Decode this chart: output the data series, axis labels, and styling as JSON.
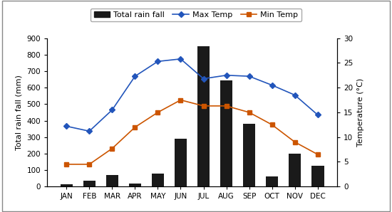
{
  "months": [
    "JAN",
    "FEB",
    "MAR",
    "APR",
    "MAY",
    "JUN",
    "JUL",
    "AUG",
    "SEP",
    "OCT",
    "NOV",
    "DEC"
  ],
  "rainfall": [
    15,
    35,
    70,
    20,
    80,
    290,
    850,
    645,
    380,
    60,
    200,
    125
  ],
  "max_temp": [
    12.2,
    11.2,
    15.5,
    22.3,
    25.3,
    25.8,
    21.8,
    22.5,
    22.3,
    20.5,
    18.5,
    14.5
  ],
  "min_temp": [
    4.5,
    4.5,
    7.7,
    12.0,
    15.0,
    17.5,
    16.3,
    16.3,
    15.0,
    12.5,
    9.0,
    6.5
  ],
  "bar_color": "#1a1a1a",
  "max_temp_color": "#2255bb",
  "min_temp_color": "#cc5500",
  "ylabel_left": "Total rain fall (mm)",
  "ylabel_right": "Temperature (°C)",
  "ylim_left": [
    0,
    900
  ],
  "ylim_right": [
    0,
    30
  ],
  "yticks_left": [
    0,
    100,
    200,
    300,
    400,
    500,
    600,
    700,
    800,
    900
  ],
  "yticks_right": [
    0,
    5,
    10,
    15,
    20,
    25,
    30
  ],
  "legend_labels": [
    "Total rain fall",
    "Max Temp",
    "Min Temp"
  ],
  "background_color": "#ffffff",
  "axis_fontsize": 8,
  "tick_fontsize": 7.5,
  "legend_fontsize": 8
}
